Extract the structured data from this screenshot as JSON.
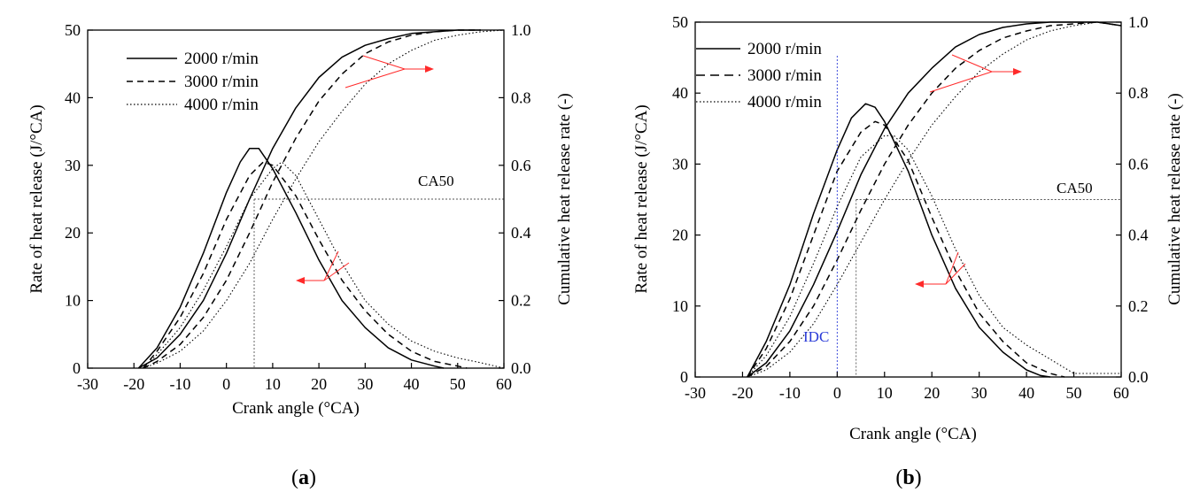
{
  "chart_data": [
    {
      "type": "line",
      "panel_label": "a",
      "xlabel": "Crank angle (°CA)",
      "ylabel": "Rate of heat release (J/°CA)",
      "y2label": "Cumulative heat release rate (-)",
      "xlim": [
        -30,
        60
      ],
      "ylim": [
        0,
        50
      ],
      "y2lim": [
        0,
        1.0
      ],
      "xticks": [
        "-30",
        "-20",
        "-10",
        "0",
        "10",
        "20",
        "30",
        "40",
        "50",
        "60"
      ],
      "yticks": [
        "0",
        "10",
        "20",
        "30",
        "40",
        "50"
      ],
      "y2ticks": [
        "0.0",
        "0.2",
        "0.4",
        "0.6",
        "0.8",
        "1.0"
      ],
      "legend_position": "top-left",
      "annotations": {
        "ca50": "CA50"
      },
      "ca50_marker": {
        "x": 6,
        "y2": 0.5
      },
      "series": [
        {
          "name": "2000 r/min",
          "style": "solid",
          "rohr": {
            "x": [
              -19,
              -15,
              -10,
              -5,
              0,
              3,
              5,
              7,
              10,
              15,
              20,
              25,
              30,
              35,
              40,
              45,
              47
            ],
            "y": [
              0,
              3,
              9,
              17,
              26,
              30.5,
              32.5,
              32.5,
              29.5,
              23,
              16,
              10,
              6,
              3,
              1.2,
              0.3,
              0
            ]
          },
          "cumulative": {
            "x": [
              -19,
              -15,
              -10,
              -5,
              0,
              5,
              10,
              15,
              20,
              25,
              30,
              35,
              40,
              45,
              50,
              55
            ],
            "y": [
              0,
              0.03,
              0.1,
              0.2,
              0.34,
              0.5,
              0.65,
              0.77,
              0.86,
              0.92,
              0.955,
              0.975,
              0.99,
              0.995,
              1.0,
              1.0
            ]
          }
        },
        {
          "name": "3000 r/min",
          "style": "dashed",
          "rohr": {
            "x": [
              -18,
              -15,
              -10,
              -5,
              0,
              5,
              8,
              10,
              15,
              20,
              25,
              30,
              35,
              40,
              45,
              50,
              52
            ],
            "y": [
              0,
              2.5,
              7.5,
              14,
              22,
              28.5,
              30.5,
              30,
              25.5,
              19,
              13,
              8.5,
              5,
              2.5,
              1,
              0.3,
              0
            ]
          },
          "cumulative": {
            "x": [
              -18,
              -15,
              -10,
              -5,
              0,
              5,
              10,
              15,
              20,
              25,
              30,
              35,
              40,
              45,
              50,
              55
            ],
            "y": [
              0,
              0.02,
              0.07,
              0.15,
              0.26,
              0.4,
              0.55,
              0.68,
              0.79,
              0.87,
              0.93,
              0.965,
              0.985,
              0.995,
              1.0,
              1.0
            ]
          }
        },
        {
          "name": "4000 r/min",
          "style": "dotted",
          "rohr": {
            "x": [
              -18,
              -15,
              -10,
              -5,
              0,
              5,
              10,
              12,
              15,
              20,
              25,
              30,
              35,
              40,
              45,
              50,
              55,
              60
            ],
            "y": [
              0,
              2,
              6,
              11.5,
              18,
              25,
              29.5,
              30.5,
              28.5,
              22,
              15.5,
              10,
              6.5,
              4,
              2.5,
              1.5,
              0.8,
              0
            ]
          },
          "cumulative": {
            "x": [
              -18,
              -15,
              -10,
              -5,
              0,
              5,
              10,
              15,
              20,
              25,
              30,
              35,
              40,
              45,
              50,
              55,
              60
            ],
            "y": [
              0,
              0.015,
              0.05,
              0.11,
              0.2,
              0.31,
              0.44,
              0.56,
              0.67,
              0.76,
              0.84,
              0.9,
              0.94,
              0.97,
              0.985,
              0.995,
              1.0
            ]
          }
        }
      ]
    },
    {
      "type": "line",
      "panel_label": "b",
      "xlabel": "Crank angle (°CA)",
      "ylabel": "Rate of heat release (J/°CA)",
      "y2label": "Cumulative heat release rate (-)",
      "xlim": [
        -30,
        60
      ],
      "ylim": [
        0,
        50
      ],
      "y2lim": [
        0,
        1.0
      ],
      "xticks": [
        "-30",
        "-20",
        "-10",
        "0",
        "10",
        "20",
        "30",
        "40",
        "50",
        "60"
      ],
      "yticks": [
        "0",
        "10",
        "20",
        "30",
        "40",
        "50"
      ],
      "y2ticks": [
        "0.0",
        "0.2",
        "0.4",
        "0.6",
        "0.8",
        "1.0"
      ],
      "legend_position": "top-left",
      "annotations": {
        "ca50": "CA50",
        "idc": "IDC"
      },
      "ca50_marker": {
        "x": 4,
        "y2": 0.5
      },
      "idc_x": 0,
      "series": [
        {
          "name": "2000 r/min",
          "style": "solid",
          "rohr": {
            "x": [
              -19,
              -15,
              -10,
              -5,
              0,
              3,
              6,
              8,
              10,
              15,
              20,
              25,
              30,
              35,
              40,
              43,
              45
            ],
            "y": [
              0,
              5,
              13,
              23,
              32,
              36.5,
              38.5,
              38,
              36,
              29,
              20,
              12.5,
              7,
              3.5,
              1,
              0.2,
              0
            ]
          },
          "cumulative": {
            "x": [
              -19,
              -15,
              -10,
              -5,
              0,
              5,
              10,
              15,
              20,
              25,
              30,
              35,
              40,
              45,
              50,
              55,
              60
            ],
            "y": [
              0,
              0.04,
              0.13,
              0.26,
              0.41,
              0.57,
              0.7,
              0.8,
              0.87,
              0.93,
              0.965,
              0.985,
              0.995,
              1.0,
              1.0,
              1.0,
              0.99
            ]
          }
        },
        {
          "name": "3000 r/min",
          "style": "dashed",
          "rohr": {
            "x": [
              -19,
              -15,
              -10,
              -5,
              0,
              5,
              8,
              10,
              15,
              20,
              25,
              30,
              35,
              40,
              45,
              48
            ],
            "y": [
              0,
              4,
              11,
              20,
              29,
              34.5,
              36,
              35.5,
              30.5,
              22.5,
              15,
              9,
              5,
              2,
              0.5,
              0
            ]
          },
          "cumulative": {
            "x": [
              -19,
              -15,
              -10,
              -5,
              0,
              5,
              10,
              15,
              20,
              25,
              30,
              35,
              40,
              45,
              50,
              55,
              60
            ],
            "y": [
              0,
              0.03,
              0.1,
              0.2,
              0.33,
              0.47,
              0.6,
              0.71,
              0.8,
              0.87,
              0.92,
              0.955,
              0.975,
              0.99,
              0.995,
              1.0,
              0.99
            ]
          }
        },
        {
          "name": "4000 r/min",
          "style": "dotted",
          "rohr": {
            "x": [
              -19,
              -15,
              -10,
              -5,
              0,
              5,
              10,
              12,
              15,
              20,
              25,
              30,
              35,
              40,
              45,
              50,
              55,
              60
            ],
            "y": [
              0,
              3,
              8.5,
              16,
              24,
              31,
              34,
              34,
              32,
              25.5,
              18,
              11.5,
              7,
              4.5,
              2.5,
              0.5,
              0.5,
              0.5
            ]
          },
          "cumulative": {
            "x": [
              -19,
              -15,
              -10,
              -5,
              0,
              5,
              10,
              15,
              20,
              25,
              30,
              35,
              40,
              45,
              50,
              55,
              60
            ],
            "y": [
              0,
              0.02,
              0.07,
              0.15,
              0.26,
              0.38,
              0.5,
              0.61,
              0.71,
              0.79,
              0.86,
              0.91,
              0.95,
              0.975,
              0.99,
              1.0,
              0.99
            ]
          }
        }
      ]
    }
  ],
  "colors": {
    "axis": "#000000",
    "arrow": "#ff2a2a",
    "idc": "#2a3bd8",
    "guide": "#555555"
  }
}
